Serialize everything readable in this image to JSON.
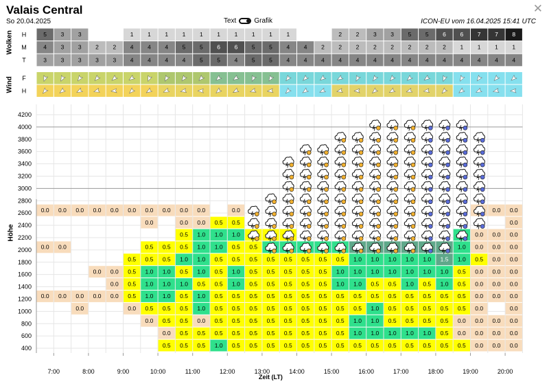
{
  "header": {
    "title": "Valais Central",
    "date": "So 20.04.2025",
    "toggle_left": "Text",
    "toggle_right": "Grafik",
    "model": "ICON-EU vom 16.04.2025 15:41 UTC",
    "close_icon": "close-icon"
  },
  "clouds": {
    "label": "Wolken",
    "rows": [
      {
        "name": "H",
        "values": [
          5,
          3,
          3,
          null,
          null,
          1,
          1,
          1,
          1,
          1,
          1,
          1,
          1,
          1,
          1,
          null,
          null,
          2,
          2,
          3,
          3,
          5,
          5,
          6,
          6,
          7,
          7,
          8
        ]
      },
      {
        "name": "M",
        "values": [
          4,
          3,
          3,
          2,
          2,
          4,
          4,
          4,
          5,
          5,
          6,
          6,
          5,
          5,
          4,
          4,
          2,
          2,
          2,
          2,
          2,
          2,
          2,
          2,
          1,
          1,
          1,
          1
        ]
      },
      {
        "name": "T",
        "values": [
          3,
          3,
          3,
          3,
          3,
          4,
          4,
          4,
          4,
          5,
          5,
          4,
          5,
          5,
          4,
          4,
          4,
          4,
          4,
          4,
          4,
          4,
          4,
          4,
          4,
          4,
          4,
          4
        ]
      }
    ]
  },
  "wind": {
    "label": "Wind",
    "rows": [
      {
        "name": "F",
        "icon": "wind-arrow-icon"
      },
      {
        "name": "H",
        "icon": "wind-arrow-icon"
      }
    ]
  },
  "chart_data": {
    "type": "heatmap",
    "ylabel": "Höhe",
    "xlabel": "Zeit (LT)",
    "y_ticks": [
      4200,
      4000,
      3800,
      3600,
      3400,
      3200,
      3000,
      2800,
      2600,
      2400,
      2200,
      2000,
      1800,
      1600,
      1400,
      1200,
      1000,
      800,
      600,
      400
    ],
    "x_ticks": [
      "7:00",
      "8:00",
      "9:00",
      "10:00",
      "11:00",
      "12:00",
      "13:00",
      "14:00",
      "15:00",
      "16:00",
      "17:00",
      "18:00",
      "19:00",
      "20:00"
    ],
    "cloud_icon": "cloud-lightning-icon",
    "cells": [
      [
        null,
        null,
        null,
        null,
        null,
        null,
        null,
        null,
        null,
        null,
        null,
        null,
        null,
        null,
        null,
        null,
        null,
        null,
        null,
        null,
        null,
        null,
        null,
        null,
        null,
        null,
        null,
        null
      ],
      [
        null,
        null,
        null,
        null,
        null,
        null,
        null,
        null,
        null,
        null,
        null,
        null,
        null,
        null,
        null,
        null,
        null,
        null,
        null,
        null,
        null,
        null,
        null,
        null,
        null,
        null,
        null,
        null
      ],
      [
        null,
        null,
        null,
        null,
        null,
        null,
        null,
        null,
        null,
        null,
        null,
        null,
        null,
        null,
        null,
        null,
        null,
        null,
        null,
        null,
        null,
        null,
        null,
        null,
        null,
        null,
        null,
        null
      ],
      [
        null,
        null,
        null,
        null,
        null,
        null,
        null,
        null,
        null,
        null,
        null,
        null,
        null,
        null,
        null,
        null,
        null,
        null,
        null,
        null,
        null,
        null,
        null,
        null,
        null,
        null,
        null,
        null
      ],
      [
        null,
        null,
        null,
        null,
        null,
        null,
        null,
        null,
        null,
        null,
        null,
        null,
        null,
        null,
        null,
        null,
        null,
        null,
        null,
        null,
        null,
        null,
        null,
        null,
        null,
        null,
        null,
        null
      ],
      [
        null,
        null,
        null,
        null,
        null,
        null,
        null,
        null,
        null,
        null,
        null,
        null,
        null,
        null,
        null,
        null,
        null,
        null,
        null,
        null,
        null,
        null,
        null,
        null,
        null,
        null,
        null,
        null
      ],
      [
        null,
        null,
        null,
        null,
        null,
        null,
        null,
        null,
        null,
        null,
        null,
        null,
        null,
        null,
        null,
        null,
        null,
        null,
        null,
        null,
        null,
        null,
        null,
        null,
        null,
        null,
        null,
        null
      ],
      [
        null,
        null,
        null,
        null,
        null,
        null,
        null,
        null,
        null,
        null,
        null,
        null,
        null,
        null,
        null,
        null,
        null,
        null,
        null,
        null,
        null,
        null,
        null,
        null,
        null,
        null,
        null,
        null
      ],
      [
        "0.0",
        "0.0",
        "0.0",
        "0.0",
        "0.0",
        "0.0",
        "0.0",
        "0.0",
        "0.0",
        "0.0",
        null,
        "0.0",
        null,
        null,
        null,
        null,
        null,
        null,
        null,
        null,
        null,
        null,
        null,
        null,
        null,
        "0.0",
        "0.0",
        "0.0"
      ],
      [
        null,
        null,
        null,
        null,
        null,
        null,
        "0.0",
        null,
        "0.0",
        "0.0",
        "0.5",
        "0.5",
        null,
        null,
        null,
        null,
        null,
        null,
        null,
        null,
        null,
        null,
        null,
        null,
        null,
        null,
        null,
        "0.0"
      ],
      [
        null,
        null,
        null,
        null,
        null,
        null,
        null,
        null,
        "0.5",
        "1.0",
        "1.0",
        "1.0",
        "0.5",
        "0.5",
        "0.5",
        null,
        null,
        null,
        null,
        null,
        null,
        null,
        null,
        null,
        "1.0",
        "0.0",
        "0.0",
        "0.0"
      ],
      [
        "0.0",
        "0.0",
        null,
        null,
        null,
        null,
        "0.5",
        "0.5",
        "0.5",
        "1.0",
        "1.0",
        "0.5",
        "0.5",
        "1.0",
        "1.0",
        "1.0",
        "1.0",
        "1.0",
        "1.5",
        "1.5",
        "1.5",
        "1.5",
        "1.5",
        "1.5",
        "1.0",
        "0.0",
        "0.0",
        "0.0"
      ],
      [
        null,
        null,
        null,
        null,
        null,
        "0.5",
        "0.5",
        "0.5",
        "1.0",
        "1.0",
        "0.5",
        "0.5",
        "0.5",
        "0.5",
        "0.5",
        "0.5",
        "0.5",
        "0.5",
        "1.0",
        "1.0",
        "1.0",
        "1.0",
        "1.0",
        "1.5",
        "1.0",
        "0.5",
        "0.0",
        "0.0"
      ],
      [
        null,
        null,
        null,
        "0.0",
        "0.0",
        "0.5",
        "1.0",
        "1.0",
        "0.5",
        "1.0",
        "0.5",
        "1.0",
        "0.5",
        "0.5",
        "0.5",
        "0.5",
        "0.5",
        "1.0",
        "1.0",
        "1.0",
        "1.0",
        "1.0",
        "1.0",
        "1.0",
        "0.5",
        "0.0",
        "0.0",
        "0.0"
      ],
      [
        null,
        null,
        null,
        null,
        "0.0",
        "0.5",
        "1.0",
        "1.0",
        "1.0",
        "0.5",
        "0.5",
        "1.0",
        "0.5",
        "0.5",
        "0.5",
        "0.5",
        "0.5",
        "1.0",
        "1.0",
        "0.5",
        "0.5",
        "1.0",
        "0.5",
        "1.0",
        "0.5",
        "0.0",
        "0.0",
        "0.0"
      ],
      [
        "0.0",
        "0.0",
        "0.0",
        "0.0",
        "0.0",
        "0.5",
        "1.0",
        "1.0",
        "0.5",
        "1.0",
        "0.5",
        "0.5",
        "0.5",
        "0.5",
        "0.5",
        "0.5",
        "0.5",
        "0.5",
        "0.5",
        "0.5",
        "0.5",
        "0.5",
        "0.5",
        "0.5",
        "0.5",
        "0.0",
        "0.0",
        "0.0"
      ],
      [
        null,
        null,
        "0.0",
        null,
        null,
        "0.0",
        "0.5",
        "0.5",
        "0.5",
        "1.0",
        "0.5",
        "0.5",
        "0.5",
        "0.5",
        "0.5",
        "0.5",
        "0.5",
        "0.5",
        "0.5",
        "1.0",
        "0.5",
        "0.5",
        "0.5",
        "0.5",
        "0.5",
        "0.0",
        null,
        "0.0"
      ],
      [
        null,
        null,
        null,
        null,
        null,
        null,
        "0.0",
        "0.5",
        "0.5",
        "0.0",
        "0.5",
        "0.5",
        "0.5",
        "0.5",
        "0.5",
        "0.5",
        "0.5",
        "0.5",
        "1.0",
        "1.0",
        "0.5",
        "0.5",
        "0.5",
        "0.5",
        "0.0",
        "0.0",
        "0.0",
        "0.0"
      ],
      [
        null,
        null,
        null,
        null,
        null,
        null,
        null,
        "0.0",
        "0.5",
        "0.5",
        "0.5",
        "0.5",
        "0.5",
        "0.5",
        "0.5",
        "0.5",
        "0.5",
        "0.5",
        "1.0",
        "1.0",
        "1.0",
        "1.0",
        "1.0",
        "0.5",
        "0.0",
        "0.0",
        "0.0",
        "0.0"
      ],
      [
        null,
        null,
        null,
        null,
        null,
        null,
        null,
        "0.5",
        "0.5",
        "0.5",
        "1.0",
        "0.5",
        "0.5",
        "0.5",
        "0.5",
        "0.5",
        "0.5",
        "0.5",
        "0.5",
        "0.5",
        "0.5",
        "0.5",
        "0.5",
        "0.5",
        "0.5",
        "0.0",
        "0.0",
        "0.0"
      ]
    ],
    "cloud_rows": [
      [],
      [
        19,
        20,
        21,
        22,
        23,
        24
      ],
      [
        17,
        18,
        19,
        20,
        21,
        22,
        23,
        24,
        25
      ],
      [
        15,
        16,
        17,
        18,
        19,
        20,
        21,
        22,
        23,
        24,
        25
      ],
      [
        14,
        15,
        16,
        17,
        18,
        19,
        20,
        21,
        22,
        23,
        24,
        25
      ],
      [
        14,
        15,
        16,
        17,
        18,
        19,
        20,
        21,
        22,
        23,
        24,
        25
      ],
      [
        14,
        15,
        16,
        17,
        18,
        19,
        20,
        21,
        22,
        23,
        24,
        25
      ],
      [
        13,
        14,
        15,
        16,
        17,
        18,
        19,
        20,
        21,
        22,
        23,
        24,
        25
      ],
      [
        12,
        13,
        14,
        15,
        16,
        17,
        18,
        19,
        20,
        21,
        22,
        23,
        24,
        25
      ],
      [
        12,
        13,
        14,
        15,
        16,
        17,
        18,
        19,
        20,
        21,
        22,
        23,
        24,
        25
      ],
      [
        12,
        13,
        14,
        15,
        16,
        17,
        18,
        19,
        20,
        21,
        22,
        23,
        24
      ],
      [
        13,
        14,
        15,
        16,
        17,
        18,
        19,
        20,
        21,
        22,
        23
      ]
    ],
    "colors": {
      "c00": "#f8dcbc",
      "c05": "#ffff00",
      "c10": "#2fe08c",
      "c15": "#5fa88a",
      "wind_top": [
        "#c9d46a",
        "#aec76e",
        "#86c092",
        "#79d7da",
        "#85e0ee"
      ],
      "wind_bottom": [
        "#f3d35a",
        "#e9d461",
        "#87e0ee",
        "#e2d36a"
      ]
    }
  }
}
